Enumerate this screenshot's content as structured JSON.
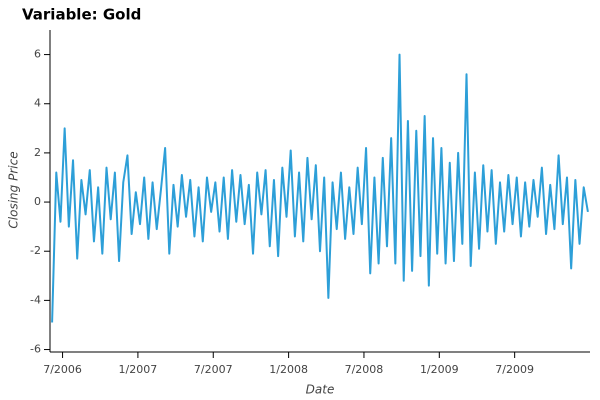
{
  "chart_data": {
    "type": "line",
    "title": "Variable: Gold",
    "x_label": "Date",
    "y_label": "Closing Price",
    "x": [
      "6/2006",
      "6/2006",
      "6/2006",
      "7/2006",
      "7/2006",
      "7/2006",
      "8/2006",
      "8/2006",
      "8/2006",
      "9/2006",
      "9/2006",
      "9/2006",
      "10/2006",
      "10/2006",
      "10/2006",
      "11/2006",
      "11/2006",
      "11/2006",
      "12/2006",
      "12/2006",
      "12/2006",
      "1/2007",
      "1/2007",
      "1/2007",
      "2/2007",
      "2/2007",
      "2/2007",
      "3/2007",
      "3/2007",
      "3/2007",
      "4/2007",
      "4/2007",
      "4/2007",
      "5/2007",
      "5/2007",
      "5/2007",
      "6/2007",
      "6/2007",
      "6/2007",
      "7/2007",
      "7/2007",
      "7/2007",
      "8/2007",
      "8/2007",
      "8/2007",
      "9/2007",
      "9/2007",
      "9/2007",
      "10/2007",
      "10/2007",
      "10/2007",
      "11/2007",
      "11/2007",
      "11/2007",
      "12/2007",
      "12/2007",
      "12/2007",
      "1/2008",
      "1/2008",
      "1/2008",
      "2/2008",
      "2/2008",
      "2/2008",
      "3/2008",
      "3/2008",
      "3/2008",
      "4/2008",
      "4/2008",
      "4/2008",
      "5/2008",
      "5/2008",
      "5/2008",
      "6/2008",
      "6/2008",
      "6/2008",
      "7/2008",
      "7/2008",
      "7/2008",
      "8/2008",
      "8/2008",
      "8/2008",
      "9/2008",
      "9/2008",
      "9/2008",
      "10/2008",
      "10/2008",
      "10/2008",
      "11/2008",
      "11/2008",
      "11/2008",
      "12/2008",
      "12/2008",
      "12/2008",
      "1/2009",
      "1/2009",
      "1/2009",
      "2/2009",
      "2/2009",
      "2/2009",
      "3/2009",
      "3/2009",
      "3/2009",
      "4/2009",
      "4/2009",
      "4/2009",
      "5/2009",
      "5/2009",
      "5/2009",
      "6/2009",
      "6/2009",
      "6/2009",
      "7/2009",
      "7/2009",
      "7/2009",
      "8/2009",
      "8/2009",
      "8/2009",
      "9/2009",
      "9/2009",
      "9/2009",
      "10/2009",
      "10/2009",
      "10/2009",
      "11/2009",
      "11/2009",
      "11/2009",
      "12/2009",
      "12/2009",
      "12/2009"
    ],
    "series": [
      {
        "color": "#2d9fd8",
        "values": [
          -4.9,
          1.2,
          -0.8,
          3.0,
          -1.0,
          1.7,
          -2.3,
          0.9,
          -0.5,
          1.3,
          -1.6,
          0.6,
          -2.1,
          1.4,
          -0.7,
          1.2,
          -2.4,
          0.8,
          1.9,
          -1.3,
          0.4,
          -0.9,
          1.0,
          -1.5,
          0.8,
          -1.1,
          0.5,
          2.2,
          -2.1,
          0.7,
          -1.0,
          1.1,
          -0.6,
          0.9,
          -1.4,
          0.6,
          -1.6,
          1.0,
          -0.4,
          0.8,
          -1.2,
          1.0,
          -1.5,
          1.3,
          -0.8,
          1.1,
          -0.9,
          0.7,
          -2.1,
          1.2,
          -0.5,
          1.3,
          -1.8,
          0.9,
          -2.2,
          1.4,
          -0.6,
          2.1,
          -1.4,
          1.2,
          -1.6,
          1.8,
          -0.7,
          1.5,
          -2.0,
          1.0,
          -3.9,
          0.8,
          -1.1,
          1.2,
          -1.5,
          0.6,
          -1.3,
          1.4,
          -0.9,
          2.2,
          -2.9,
          1.0,
          -2.5,
          1.8,
          -1.8,
          2.6,
          -2.5,
          6.0,
          -3.2,
          3.3,
          -2.8,
          2.9,
          -2.2,
          3.5,
          -3.4,
          2.6,
          -2.1,
          2.2,
          -2.5,
          1.6,
          -2.4,
          2.0,
          -1.7,
          5.2,
          -2.6,
          1.2,
          -1.9,
          1.5,
          -1.2,
          1.3,
          -1.7,
          0.8,
          -1.2,
          1.1,
          -0.9,
          1.0,
          -1.4,
          0.8,
          -1.0,
          0.9,
          -0.6,
          1.4,
          -1.3,
          0.7,
          -1.1,
          1.9,
          -0.9,
          1.0,
          -2.7,
          0.9,
          -1.7,
          0.6,
          -0.4
        ]
      }
    ],
    "xlim": [
      "6/2006",
      "1/2010"
    ],
    "xticks": [
      "7/2006",
      "1/2007",
      "7/2007",
      "1/2008",
      "7/2008",
      "1/2009",
      "7/2009"
    ],
    "ylim": [
      -6.1,
      7
    ],
    "yticks": [
      -6,
      -4,
      -2,
      0,
      2,
      4,
      6
    ]
  }
}
